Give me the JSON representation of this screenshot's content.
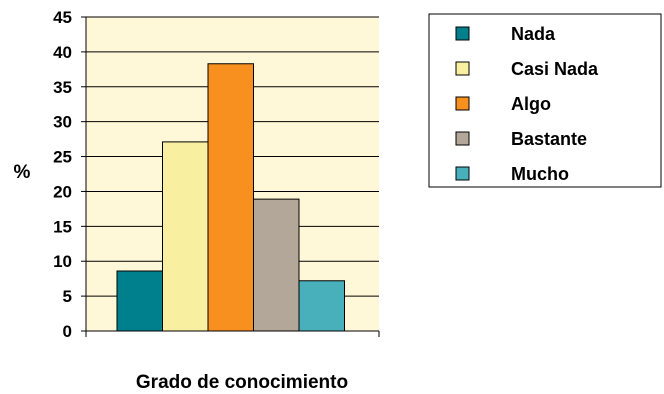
{
  "chart_data": {
    "type": "bar",
    "categories": [
      "Nada",
      "Casi Nada",
      "Algo",
      "Bastante",
      "Mucho"
    ],
    "values": [
      8.6,
      27.1,
      38.3,
      18.9,
      7.2
    ],
    "colors": [
      "#00808c",
      "#f8f0a0",
      "#f7901e",
      "#b3a79a",
      "#48b0bb"
    ],
    "title": "",
    "xlabel": "Grado de conocimiento",
    "ylabel": "%",
    "ylim": [
      0,
      45
    ],
    "yticks": [
      "0",
      "5",
      "10",
      "15",
      "20",
      "25",
      "30",
      "35",
      "40",
      "45"
    ],
    "grid": true,
    "plot_background": "#fff8d8",
    "legend": {
      "placement": "top-right",
      "entries": [
        "Nada",
        "Casi Nada",
        "Algo",
        "Bastante",
        "Mucho"
      ]
    }
  }
}
